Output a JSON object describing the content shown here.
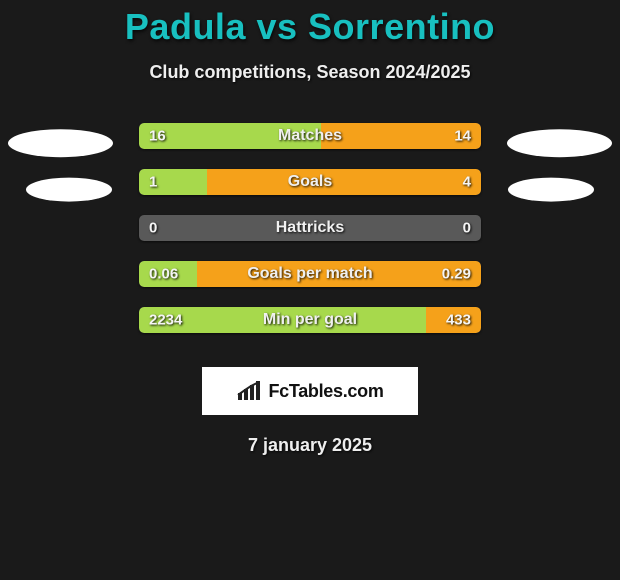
{
  "title": {
    "player1": "Padula",
    "vs": "vs",
    "player2": "Sorrentino",
    "color": "#18c0c0"
  },
  "subtitle": "Club competitions, Season 2024/2025",
  "left_color": "#a7d94c",
  "right_color": "#f5a11a",
  "bg_bar": "#595959",
  "ellipse_rows": [
    0,
    1
  ],
  "stats": [
    {
      "label": "Matches",
      "left_val": "16",
      "right_val": "14",
      "left_pct": 53.3,
      "right_pct": 46.7
    },
    {
      "label": "Goals",
      "left_val": "1",
      "right_val": "4",
      "left_pct": 20.0,
      "right_pct": 80.0
    },
    {
      "label": "Hattricks",
      "left_val": "0",
      "right_val": "0",
      "left_pct": 0.0,
      "right_pct": 0.0
    },
    {
      "label": "Goals per match",
      "left_val": "0.06",
      "right_val": "0.29",
      "left_pct": 17.1,
      "right_pct": 82.9
    },
    {
      "label": "Min per goal",
      "left_val": "2234",
      "right_val": "433",
      "left_pct": 83.8,
      "right_pct": 16.2
    }
  ],
  "brand": "FcTables.com",
  "date": "7 january 2025"
}
